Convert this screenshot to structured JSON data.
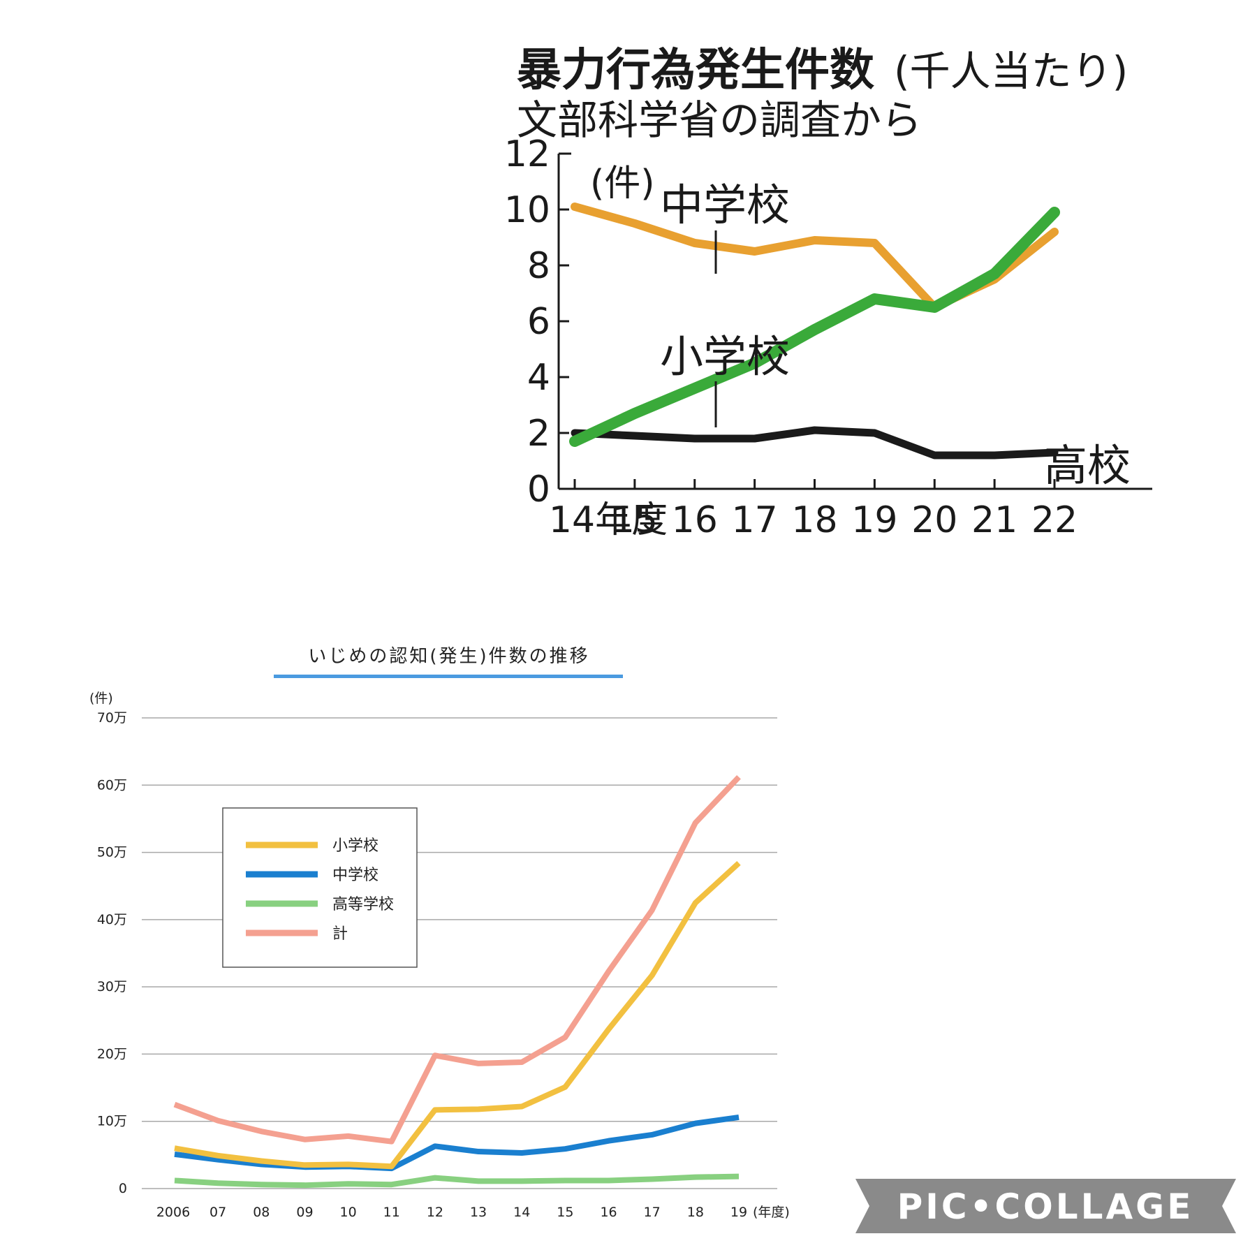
{
  "chart_data": [
    {
      "type": "line",
      "title": "暴力行為発生件数",
      "title_suffix": "(千人当たり)",
      "subtitle": "文部科学省の調査から",
      "ylabel": "(件)",
      "xlabel": "",
      "x_tick_labels": [
        "14年度",
        "15",
        "16",
        "17",
        "18",
        "19",
        "20",
        "21",
        "22"
      ],
      "y_tick_labels": [
        "0",
        "2",
        "4",
        "6",
        "8",
        "10",
        "12"
      ],
      "x": [
        14,
        15,
        16,
        17,
        18,
        19,
        20,
        21,
        22
      ],
      "ylim": [
        0,
        12
      ],
      "grid": false,
      "series": [
        {
          "name": "中学校",
          "color": "#e8a030",
          "values": [
            10.1,
            9.5,
            8.8,
            8.5,
            8.9,
            8.8,
            6.5,
            7.5,
            9.2
          ]
        },
        {
          "name": "小学校",
          "color": "#3aaa3a",
          "values": [
            1.7,
            2.7,
            3.6,
            4.5,
            5.7,
            6.8,
            6.5,
            7.7,
            9.9
          ]
        },
        {
          "name": "高校",
          "color": "#1a1a1a",
          "values": [
            2.0,
            1.9,
            1.8,
            1.8,
            2.1,
            2.0,
            1.2,
            1.2,
            1.3
          ]
        }
      ]
    },
    {
      "type": "line",
      "title": "いじめの認知(発生)件数の推移",
      "ylabel": "(件)",
      "xlabel": "(年度)",
      "x_tick_labels": [
        "2006",
        "07",
        "08",
        "09",
        "10",
        "11",
        "12",
        "13",
        "14",
        "15",
        "16",
        "17",
        "18",
        "19"
      ],
      "y_tick_labels": [
        "0",
        "10万",
        "20万",
        "30万",
        "40万",
        "50万",
        "60万",
        "70万"
      ],
      "x": [
        2006,
        2007,
        2008,
        2009,
        2010,
        2011,
        2012,
        2013,
        2014,
        2015,
        2016,
        2017,
        2018,
        2019
      ],
      "ylim": [
        0,
        700000
      ],
      "grid": true,
      "legend_position": "top-left",
      "series": [
        {
          "name": "小学校",
          "color": "#f2c040",
          "values": [
            60000,
            49000,
            41000,
            35000,
            36000,
            33000,
            117000,
            118000,
            122000,
            151000,
            237000,
            317000,
            425000,
            484000
          ]
        },
        {
          "name": "中学校",
          "color": "#1a7fcf",
          "values": [
            51000,
            43000,
            36000,
            32000,
            33000,
            30000,
            63000,
            55000,
            53000,
            59000,
            71000,
            80000,
            97000,
            106000
          ]
        },
        {
          "name": "高等学校",
          "color": "#88d080",
          "values": [
            12000,
            8000,
            6000,
            5000,
            7000,
            6000,
            16000,
            11000,
            11000,
            12000,
            12000,
            14000,
            17000,
            18000
          ]
        },
        {
          "name": "計",
          "color": "#f4a090",
          "values": [
            125000,
            101000,
            85000,
            73000,
            78000,
            70000,
            198000,
            186000,
            188000,
            225000,
            323000,
            414000,
            544000,
            612000
          ]
        }
      ]
    }
  ],
  "watermark": "PIC•COLLAGE"
}
